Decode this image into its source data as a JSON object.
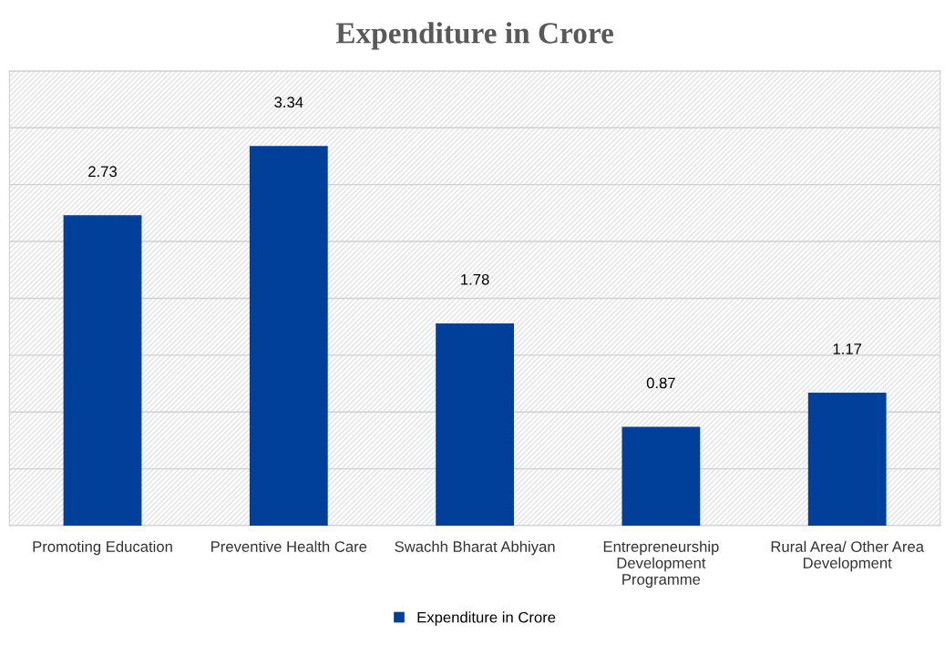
{
  "chart_data": {
    "type": "bar",
    "title": "Expenditure in Crore",
    "categories": [
      "Promoting Education",
      "Preventive Health Care",
      "Swachh Bharat Abhiyan",
      "Entrepreneurship\nDevelopment\nProgramme",
      "Rural Area/ Other Area\nDevelopment"
    ],
    "series": [
      {
        "name": "Expenditure in Crore",
        "color": "#00409a",
        "values": [
          2.73,
          3.34,
          1.78,
          0.87,
          1.17
        ]
      }
    ],
    "ylim": [
      0,
      4
    ],
    "yticks": [
      {
        "value": 0,
        "label": null
      },
      {
        "value": 0.5,
        "label": null
      },
      {
        "value": 1,
        "label": null
      },
      {
        "value": 1.5,
        "label": null
      },
      {
        "value": 2,
        "label": null
      },
      {
        "value": 2.5,
        "label": null
      },
      {
        "value": 3,
        "label": null
      },
      {
        "value": 3.5,
        "label": null
      },
      {
        "value": 4,
        "label": null
      }
    ],
    "tick_labels": "x",
    "grid": "y",
    "data_labels": true,
    "legend": "bottom"
  }
}
